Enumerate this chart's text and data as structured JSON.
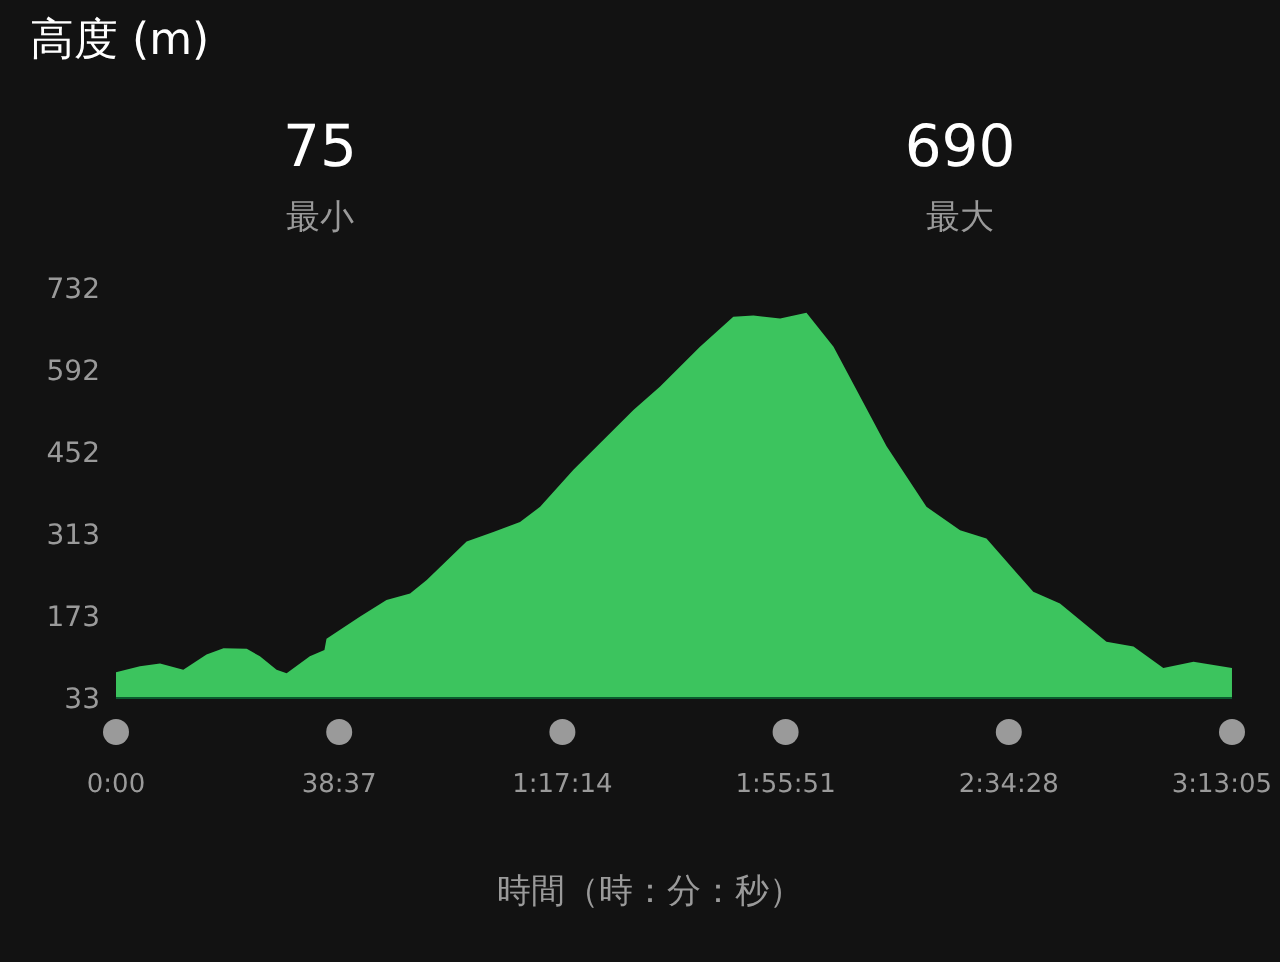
{
  "chart_data": {
    "type": "area",
    "title": "高度 (m)",
    "xlabel": "時間（時：分：秒）",
    "annotations": [
      "75",
      "最小",
      "690",
      "最大"
    ],
    "xlim": [
      0,
      193.083
    ],
    "ylim": [
      33,
      732
    ],
    "xticks": [
      {
        "value": 0,
        "label": "0:00"
      },
      {
        "value": 38.617,
        "label": "38:37"
      },
      {
        "value": 77.233,
        "label": "1:17:14"
      },
      {
        "value": 115.85,
        "label": "1:55:51"
      },
      {
        "value": 154.467,
        "label": "2:34:28"
      },
      {
        "value": 193.083,
        "label": "3:13:05"
      }
    ],
    "yticks": [
      33,
      173,
      313,
      452,
      592,
      732
    ],
    "grid": false,
    "series": [
      {
        "color": "#3cc45e",
        "x": [
          0,
          4.14,
          7.62,
          11.64,
          15.66,
          18.6,
          22.62,
          24.9,
          27.78,
          29.52,
          33.54,
          36.06,
          36.42,
          42.24,
          46.8,
          50.88,
          53.76,
          60.66,
          65.28,
          69.9,
          73.38,
          79.14,
          89.52,
          94.14,
          101.04,
          106.8,
          110.28,
          114.9,
          119.46,
          124.14,
          133.32,
          140.22,
          146.04,
          150.6,
          158.7,
          163.32,
          171.36,
          176.04,
          181.2,
          186.42,
          193.08
        ],
        "values": [
          77,
          87,
          92,
          81,
          107,
          118,
          117,
          104,
          81,
          75,
          104,
          115,
          134,
          172,
          200,
          211,
          234,
          300,
          316,
          333,
          359,
          422,
          524,
          564,
          632,
          683,
          685,
          680,
          690,
          632,
          462,
          359,
          319,
          305,
          214,
          194,
          129,
          121,
          84,
          95,
          84
        ]
      }
    ]
  }
}
